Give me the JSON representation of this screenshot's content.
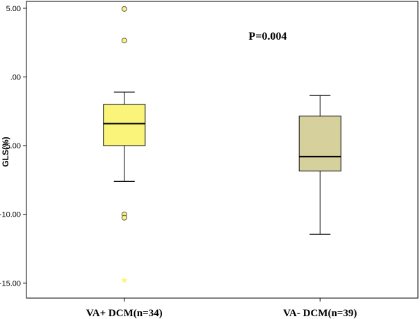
{
  "chart_data": {
    "type": "box",
    "title": "",
    "xlabel": "",
    "ylabel": "GLS(%)",
    "ylim": [
      -16.1,
      5.5
    ],
    "yticks": [
      5,
      0,
      -5,
      -10,
      -15
    ],
    "ytick_labels": [
      "5.00",
      ".00",
      "-5.00",
      "-10.00",
      "-15.00"
    ],
    "categories": [
      "VA+ DCM(n=34)",
      "VA- DCM(n=39)"
    ],
    "annotation": "P=0.004",
    "grid": false,
    "legend": "none",
    "boxes": [
      {
        "category": "VA+ DCM(n=34)",
        "color": "#fbf47a",
        "whisker_low": -7.6,
        "q1": -5.0,
        "median": -3.4,
        "q3": -2.0,
        "whisker_high": -1.1,
        "outliers": [
          4.95,
          2.65,
          -10.0,
          -10.25
        ],
        "extremes": [
          -14.8
        ]
      },
      {
        "category": "VA- DCM(n=39)",
        "color": "#d6d09c",
        "whisker_low": -11.45,
        "q1": -6.85,
        "median": -5.8,
        "q3": -2.85,
        "whisker_high": -1.35,
        "outliers": [],
        "extremes": []
      }
    ]
  }
}
